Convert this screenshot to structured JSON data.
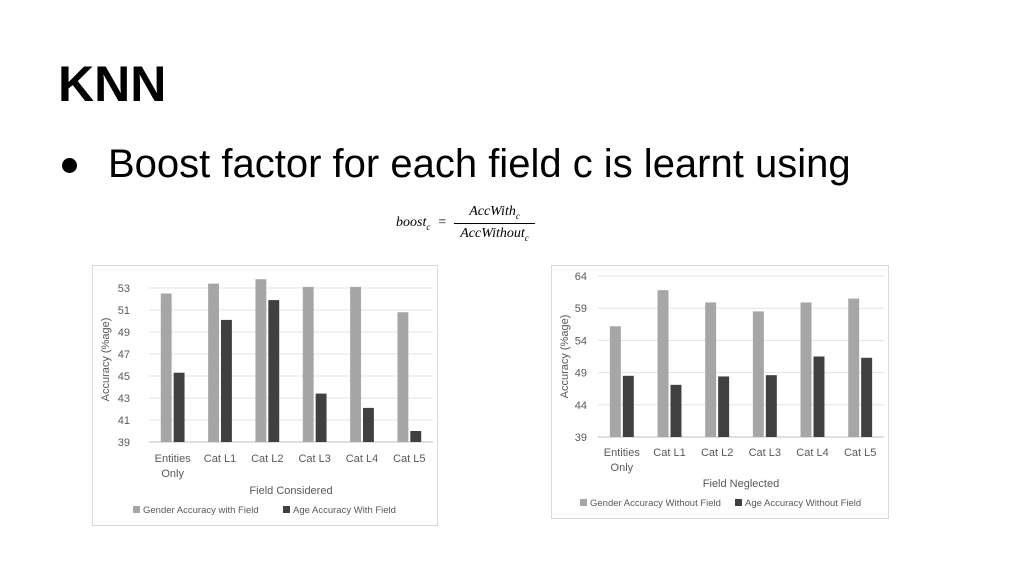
{
  "slide": {
    "title": "KNN",
    "bullet": "Boost factor for each field c is learnt using",
    "formula": {
      "lhs": "boost",
      "lhs_sub": "c",
      "eq": "=",
      "numerator": "AccWith",
      "numerator_sub": "c",
      "denominator": "AccWithout",
      "denominator_sub": "c"
    }
  },
  "colors": {
    "gender": "#a6a6a6",
    "age": "#404040",
    "grid": "#e3e3e3",
    "axis_text": "#595959"
  },
  "chart_data": [
    {
      "type": "bar",
      "categories": [
        [
          "Entities",
          "Only"
        ],
        [
          "Cat L1"
        ],
        [
          "Cat L2"
        ],
        [
          "Cat L3"
        ],
        [
          "Cat L4"
        ],
        [
          "Cat L5"
        ]
      ],
      "series": [
        {
          "name": "Gender Accuracy with Field",
          "color": "#a6a6a6",
          "values": [
            52.5,
            53.4,
            53.8,
            53.1,
            53.1,
            50.8
          ]
        },
        {
          "name": "Age Accuracy With Field",
          "color": "#404040",
          "values": [
            45.3,
            50.1,
            51.9,
            43.4,
            42.1,
            40.0
          ]
        }
      ],
      "xlabel": "Field Considered",
      "ylabel": "Accuracy (%age)",
      "ylim": [
        39,
        54
      ],
      "yticks": [
        39,
        41,
        43,
        45,
        47,
        49,
        51,
        53
      ],
      "grid": true,
      "legend": "bottom"
    },
    {
      "type": "bar",
      "categories": [
        [
          "Entities",
          "Only"
        ],
        [
          "Cat L1"
        ],
        [
          "Cat L2"
        ],
        [
          "Cat L3"
        ],
        [
          "Cat L4"
        ],
        [
          "Cat L5"
        ]
      ],
      "series": [
        {
          "name": "Gender Accuracy Without Field",
          "color": "#a6a6a6",
          "values": [
            56.2,
            61.8,
            59.9,
            58.5,
            59.9,
            60.5
          ]
        },
        {
          "name": "Age Accuracy Without Field",
          "color": "#404040",
          "values": [
            48.5,
            47.1,
            48.4,
            48.6,
            51.5,
            51.3
          ]
        }
      ],
      "xlabel": "Field Neglected",
      "ylabel": "Accuracy (%age)",
      "ylim": [
        39,
        64
      ],
      "yticks": [
        39,
        44,
        49,
        54,
        59,
        64
      ],
      "grid": true,
      "legend": "bottom"
    }
  ]
}
